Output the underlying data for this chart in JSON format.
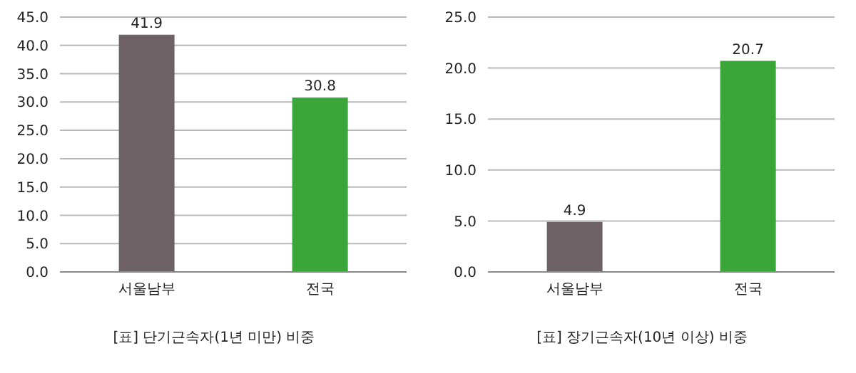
{
  "chart_data": [
    {
      "type": "bar",
      "title": "[표] 단기근속자(1년 미만) 비중",
      "categories": [
        "서울남부",
        "전국"
      ],
      "values": [
        41.9,
        30.8
      ],
      "colors": [
        "#6e6165",
        "#3aa639"
      ],
      "ylim": [
        0,
        45
      ],
      "yticks": [
        {
          "value": 0,
          "label": "0.0"
        },
        {
          "value": 5,
          "label": "5.0"
        },
        {
          "value": 10,
          "label": "10.0"
        },
        {
          "value": 15,
          "label": "15.0"
        },
        {
          "value": 20,
          "label": "20.0"
        },
        {
          "value": 25,
          "label": "25.0"
        },
        {
          "value": 30,
          "label": "30.0"
        },
        {
          "value": 35,
          "label": "35.0"
        },
        {
          "value": 40,
          "label": "40.0"
        },
        {
          "value": 45,
          "label": "45.0"
        }
      ],
      "grid": "y",
      "data_labels": true,
      "legend": false
    },
    {
      "type": "bar",
      "title": "[표] 장기근속자(10년 이상) 비중",
      "categories": [
        "서울남부",
        "전국"
      ],
      "values": [
        4.9,
        20.7
      ],
      "colors": [
        "#6e6165",
        "#3aa639"
      ],
      "ylim": [
        0,
        25
      ],
      "yticks": [
        {
          "value": 0,
          "label": "0.0"
        },
        {
          "value": 5,
          "label": "5.0"
        },
        {
          "value": 10,
          "label": "10.0"
        },
        {
          "value": 15,
          "label": "15.0"
        },
        {
          "value": 20,
          "label": "20.0"
        },
        {
          "value": 25,
          "label": "25.0"
        }
      ],
      "grid": "y",
      "data_labels": true,
      "legend": false
    }
  ]
}
